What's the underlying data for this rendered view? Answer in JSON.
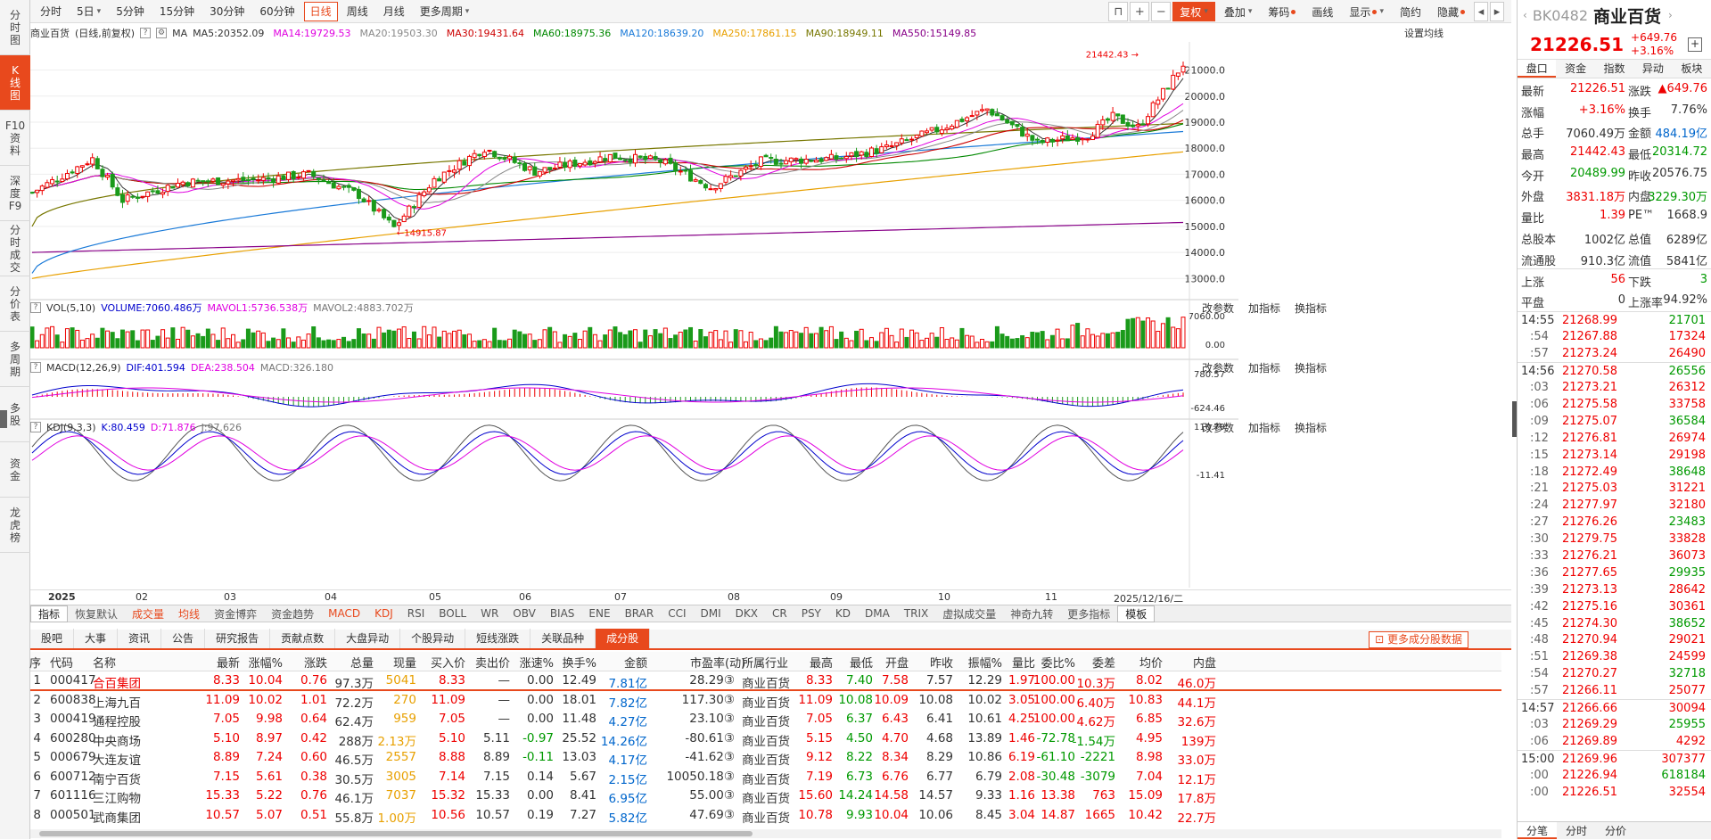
{
  "left_tabs": [
    "分时图",
    "K线图",
    "F10资料",
    "深度F9",
    "分时成交",
    "分价表",
    "多周期",
    "多股",
    "资金",
    "龙虎榜"
  ],
  "toolbar": {
    "periods": [
      "分时",
      "5日",
      "5分钟",
      "15分钟",
      "30分钟",
      "60分钟",
      "日线",
      "周线",
      "月线",
      "更多周期"
    ],
    "right": [
      "复权",
      "叠加",
      "筹码",
      "画线",
      "显示",
      "简约",
      "隐藏"
    ]
  },
  "header": {
    "title": "商业百货",
    "mode": "(日线,前复权)",
    "ma_label": "MA",
    "ma": [
      {
        "text": "MA5:20352.09",
        "color": "#333333"
      },
      {
        "text": "MA14:19729.53",
        "color": "#e000e0"
      },
      {
        "text": "MA20:19503.30",
        "color": "#888888"
      },
      {
        "text": "MA30:19431.64",
        "color": "#cc0000"
      },
      {
        "text": "MA60:18975.36",
        "color": "#008800"
      },
      {
        "text": "MA120:18639.20",
        "color": "#1a7ad8"
      },
      {
        "text": "MA250:17861.15",
        "color": "#e8a000"
      },
      {
        "text": "MA90:18949.11",
        "color": "#777700"
      },
      {
        "text": "MA550:15149.85",
        "color": "#880088"
      }
    ],
    "settings": "设置均线"
  },
  "price_axis": [
    "21000.0",
    "20000.0",
    "19000.0",
    "18000.0",
    "17000.0",
    "16000.0",
    "15000.0",
    "14000.0",
    "13000.0"
  ],
  "annotations": {
    "high": "21442.43",
    "low": "14915.87"
  },
  "vol": {
    "head": "VOL(5,10)",
    "items": [
      {
        "text": "VOLUME:7060.486万",
        "color": "#0000cc"
      },
      {
        "text": "MAVOL1:5736.538万",
        "color": "#e000e0"
      },
      {
        "text": "MAVOL2:4883.702万",
        "color": "#777777"
      }
    ],
    "axis": [
      "7060.00",
      "0.00"
    ]
  },
  "macd": {
    "head": "MACD(12,26,9)",
    "items": [
      {
        "text": "DIF:401.594",
        "color": "#0000cc"
      },
      {
        "text": "DEA:238.504",
        "color": "#e000e0"
      },
      {
        "text": "MACD:326.180",
        "color": "#777777"
      }
    ],
    "axis": [
      "780.57",
      "-624.46"
    ]
  },
  "kdj": {
    "head": "KDJ(9,3,3)",
    "items": [
      {
        "text": "K:80.459",
        "color": "#0000cc"
      },
      {
        "text": "D:71.876",
        "color": "#e000e0"
      },
      {
        "text": "J:97.626",
        "color": "#777777"
      }
    ],
    "axis": [
      "110.79",
      "-11.41"
    ]
  },
  "panel_tools": [
    "改参数",
    "加指标",
    "换指标"
  ],
  "months": [
    "2025",
    "02",
    "03",
    "04",
    "05",
    "06",
    "07",
    "08",
    "09",
    "10",
    "11",
    "2025/12/16/二"
  ],
  "indicator_tabs": [
    "指标",
    "恢复默认",
    "成交量",
    "均线",
    "资金博弈",
    "资金趋势",
    "MACD",
    "KDJ",
    "RSI",
    "BOLL",
    "WR",
    "OBV",
    "BIAS",
    "ENE",
    "BRAR",
    "CCI",
    "DMI",
    "DKX",
    "CR",
    "PSY",
    "KD",
    "DMA",
    "TRIX",
    "虚拟成交量",
    "神奇九转",
    "更多指标",
    "模板"
  ],
  "bottom_tabs": [
    "股吧",
    "大事",
    "资讯",
    "公告",
    "研究报告",
    "贡献点数",
    "大盘异动",
    "个股异动",
    "短线涨跌",
    "关联品种",
    "成分股"
  ],
  "more_comp": "更多成分股数据",
  "table": {
    "headers": [
      "序",
      "代码",
      "名称",
      "最新",
      "涨幅%",
      "涨跌",
      "总量",
      "现量",
      "买入价",
      "卖出价",
      "涨速%",
      "换手%",
      "金额",
      "市盈率(动)",
      "所属行业",
      "最高",
      "最低",
      "开盘",
      "昨收",
      "振幅%",
      "量比",
      "委比%",
      "委差",
      "均价",
      "内盘"
    ],
    "rows": [
      [
        "1",
        "000417",
        "合百集团",
        "8.33",
        "10.04",
        "0.76",
        "97.3万",
        "5041",
        "8.33",
        "—",
        "0.00",
        "12.49",
        "7.81亿",
        "28.29③",
        "商业百货",
        "8.33",
        "7.40",
        "7.58",
        "7.57",
        "12.29",
        "1.97",
        "100.00",
        "10.3万",
        "8.02",
        "46.0万"
      ],
      [
        "2",
        "600838",
        "上海九百",
        "11.09",
        "10.02",
        "1.01",
        "72.2万",
        "270",
        "11.09",
        "—",
        "0.00",
        "18.01",
        "7.82亿",
        "117.30③",
        "商业百货",
        "11.09",
        "10.08",
        "10.09",
        "10.08",
        "10.02",
        "3.05",
        "100.00",
        "6.40万",
        "10.83",
        "44.1万"
      ],
      [
        "3",
        "000419",
        "通程控股",
        "7.05",
        "9.98",
        "0.64",
        "62.4万",
        "959",
        "7.05",
        "—",
        "0.00",
        "11.48",
        "4.27亿",
        "23.10③",
        "商业百货",
        "7.05",
        "6.37",
        "6.43",
        "6.41",
        "10.61",
        "4.25",
        "100.00",
        "4.62万",
        "6.85",
        "32.6万"
      ],
      [
        "4",
        "600280",
        "中央商场",
        "5.10",
        "8.97",
        "0.42",
        "288万",
        "2.13万",
        "5.10",
        "5.11",
        "-0.97",
        "25.52",
        "14.26亿",
        "-80.61③",
        "商业百货",
        "5.15",
        "4.50",
        "4.70",
        "4.68",
        "13.89",
        "1.46",
        "-72.78",
        "-1.54万",
        "4.95",
        "139万"
      ],
      [
        "5",
        "000679",
        "大连友谊",
        "8.89",
        "7.24",
        "0.60",
        "46.5万",
        "2557",
        "8.88",
        "8.89",
        "-0.11",
        "13.03",
        "4.17亿",
        "-41.62③",
        "商业百货",
        "9.12",
        "8.22",
        "8.34",
        "8.29",
        "10.86",
        "6.19",
        "-61.10",
        "-2221",
        "8.98",
        "33.0万"
      ],
      [
        "6",
        "600712",
        "南宁百货",
        "7.15",
        "5.61",
        "0.38",
        "30.5万",
        "3005",
        "7.14",
        "7.15",
        "0.14",
        "5.67",
        "2.15亿",
        "10050.18③",
        "商业百货",
        "7.19",
        "6.73",
        "6.76",
        "6.77",
        "6.79",
        "2.08",
        "-30.48",
        "-3079",
        "7.04",
        "12.1万"
      ],
      [
        "7",
        "601116",
        "三江购物",
        "15.33",
        "5.22",
        "0.76",
        "46.1万",
        "7037",
        "15.32",
        "15.33",
        "0.00",
        "8.41",
        "6.95亿",
        "55.00③",
        "商业百货",
        "15.60",
        "14.24",
        "14.58",
        "14.57",
        "9.33",
        "1.16",
        "13.38",
        "763",
        "15.09",
        "17.8万"
      ],
      [
        "8",
        "000501",
        "武商集团",
        "10.57",
        "5.07",
        "0.51",
        "55.8万",
        "1.00万",
        "10.56",
        "10.57",
        "0.19",
        "7.27",
        "5.82亿",
        "47.69③",
        "商业百货",
        "10.78",
        "9.93",
        "10.04",
        "10.06",
        "8.45",
        "3.04",
        "14.87",
        "1665",
        "10.42",
        "22.7万"
      ]
    ]
  },
  "right": {
    "code": "BK0482",
    "name": "商业百货",
    "price": "21226.51",
    "change": "+649.76",
    "pct": "+3.16%",
    "tabs": [
      "盘口",
      "资金",
      "指数",
      "异动",
      "板块"
    ],
    "kv": [
      [
        "最新",
        "21226.51",
        "涨跌",
        "▲649.76"
      ],
      [
        "涨幅",
        "+3.16%",
        "换手",
        "7.76%"
      ],
      [
        "总手",
        "7060.49万",
        "金额",
        "484.19亿"
      ],
      [
        "最高",
        "21442.43",
        "最低",
        "20314.72"
      ],
      [
        "今开",
        "20489.99",
        "昨收",
        "20576.75"
      ],
      [
        "外盘",
        "3831.18万",
        "内盘",
        "3229.30万"
      ],
      [
        "量比",
        "1.39",
        "PE™",
        "1668.9"
      ],
      [
        "总股本",
        "1002亿",
        "总值",
        "6289亿"
      ],
      [
        "流通股",
        "910.3亿",
        "流值",
        "5841亿"
      ],
      [
        "上涨",
        "56",
        "下跌",
        "3"
      ],
      [
        "平盘",
        "0",
        "上涨率",
        "94.92%"
      ]
    ],
    "ticks": [
      [
        "14:55",
        "21268.99",
        "21701"
      ],
      [
        ":54",
        "21267.88",
        "17324"
      ],
      [
        ":57",
        "21273.24",
        "26490"
      ],
      [
        "14:56",
        "21270.58",
        "26556"
      ],
      [
        ":03",
        "21273.21",
        "26312"
      ],
      [
        ":06",
        "21275.58",
        "33758"
      ],
      [
        ":09",
        "21275.07",
        "36584"
      ],
      [
        ":12",
        "21276.81",
        "26974"
      ],
      [
        ":15",
        "21273.14",
        "29198"
      ],
      [
        ":18",
        "21272.49",
        "38648"
      ],
      [
        ":21",
        "21275.03",
        "31221"
      ],
      [
        ":24",
        "21277.97",
        "32180"
      ],
      [
        ":27",
        "21276.26",
        "23483"
      ],
      [
        ":30",
        "21279.75",
        "33828"
      ],
      [
        ":33",
        "21276.21",
        "36073"
      ],
      [
        ":36",
        "21277.65",
        "29935"
      ],
      [
        ":39",
        "21273.13",
        "28642"
      ],
      [
        ":42",
        "21275.16",
        "30361"
      ],
      [
        ":45",
        "21274.30",
        "38652"
      ],
      [
        ":48",
        "21270.94",
        "29021"
      ],
      [
        ":51",
        "21269.38",
        "24599"
      ],
      [
        ":54",
        "21270.27",
        "32718"
      ],
      [
        ":57",
        "21266.11",
        "25077"
      ],
      [
        "14:57",
        "21266.66",
        "30094"
      ],
      [
        ":03",
        "21269.29",
        "25955"
      ],
      [
        ":06",
        "21269.89",
        "4292"
      ],
      [
        "15:00",
        "21269.96",
        "307377"
      ],
      [
        ":00",
        "21226.94",
        "618184"
      ],
      [
        ":00",
        "21226.51",
        "32554"
      ]
    ],
    "bottom_tabs": [
      "分笔",
      "分时",
      "分价"
    ]
  }
}
